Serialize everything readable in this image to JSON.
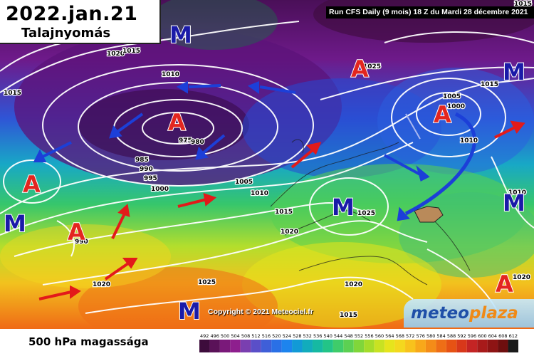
{
  "title": {
    "date": "2022.jan.21",
    "subtitle": "Talajnyomás"
  },
  "run_info": "Run CFS Daily (9 mois) 18 Z du Mardi 28 décembre 2021",
  "copyright": "Copyright © 2021 Meteociel.fr",
  "logo": {
    "part1": "meteo",
    "part2": "plaza"
  },
  "legend": {
    "title": "500 hPa magassága",
    "ticks": [
      "492",
      "496",
      "500",
      "504",
      "508",
      "512",
      "516",
      "520",
      "524",
      "528",
      "532",
      "536",
      "540",
      "544",
      "548",
      "552",
      "556",
      "560",
      "564",
      "568",
      "572",
      "576",
      "580",
      "584",
      "588",
      "592",
      "596",
      "600",
      "604",
      "608",
      "612"
    ],
    "colors": [
      "#3d0c3c",
      "#5a1258",
      "#7a197a",
      "#8e1f8e",
      "#7a3fb0",
      "#5a4fc8",
      "#3f5fd8",
      "#2a70e6",
      "#1d84ee",
      "#129ad6",
      "#12acbc",
      "#16b9a2",
      "#23c487",
      "#3fcc6a",
      "#5cd052",
      "#80d63a",
      "#a4dc2a",
      "#c8e222",
      "#e6e41c",
      "#f4d81e",
      "#f8c21c",
      "#f8a81a",
      "#f48c18",
      "#ee6e16",
      "#e65214",
      "#d8381a",
      "#c42424",
      "#a81a1a",
      "#8e1414",
      "#6e0e0e",
      "#1a1a1a"
    ]
  },
  "pressure_labels": [
    "1015",
    "1020",
    "1015",
    "1010",
    "1015",
    "990",
    "985",
    "990",
    "995",
    "1000",
    "975",
    "980",
    "1005",
    "1010",
    "1015",
    "1020",
    "1025",
    "1020",
    "1015",
    "1005",
    "1000",
    "1010",
    "1015",
    "1020",
    "1010",
    "1025",
    "1025",
    "1020"
  ],
  "pressure_centers": [
    {
      "type": "high",
      "letter": "A"
    },
    {
      "type": "high",
      "letter": "A"
    },
    {
      "type": "high",
      "letter": "A"
    },
    {
      "type": "high",
      "letter": "A"
    },
    {
      "type": "high",
      "letter": "A"
    },
    {
      "type": "high",
      "letter": "A"
    },
    {
      "type": "low",
      "letter": "M"
    },
    {
      "type": "low",
      "letter": "M"
    },
    {
      "type": "low",
      "letter": "M"
    },
    {
      "type": "low",
      "letter": "M"
    },
    {
      "type": "low",
      "letter": "M"
    }
  ],
  "colors": {
    "high": "#e3261f",
    "low": "#1a1aa8",
    "warm_arrow": "#e31a1a",
    "cold_arrow": "#1c3fd8"
  }
}
